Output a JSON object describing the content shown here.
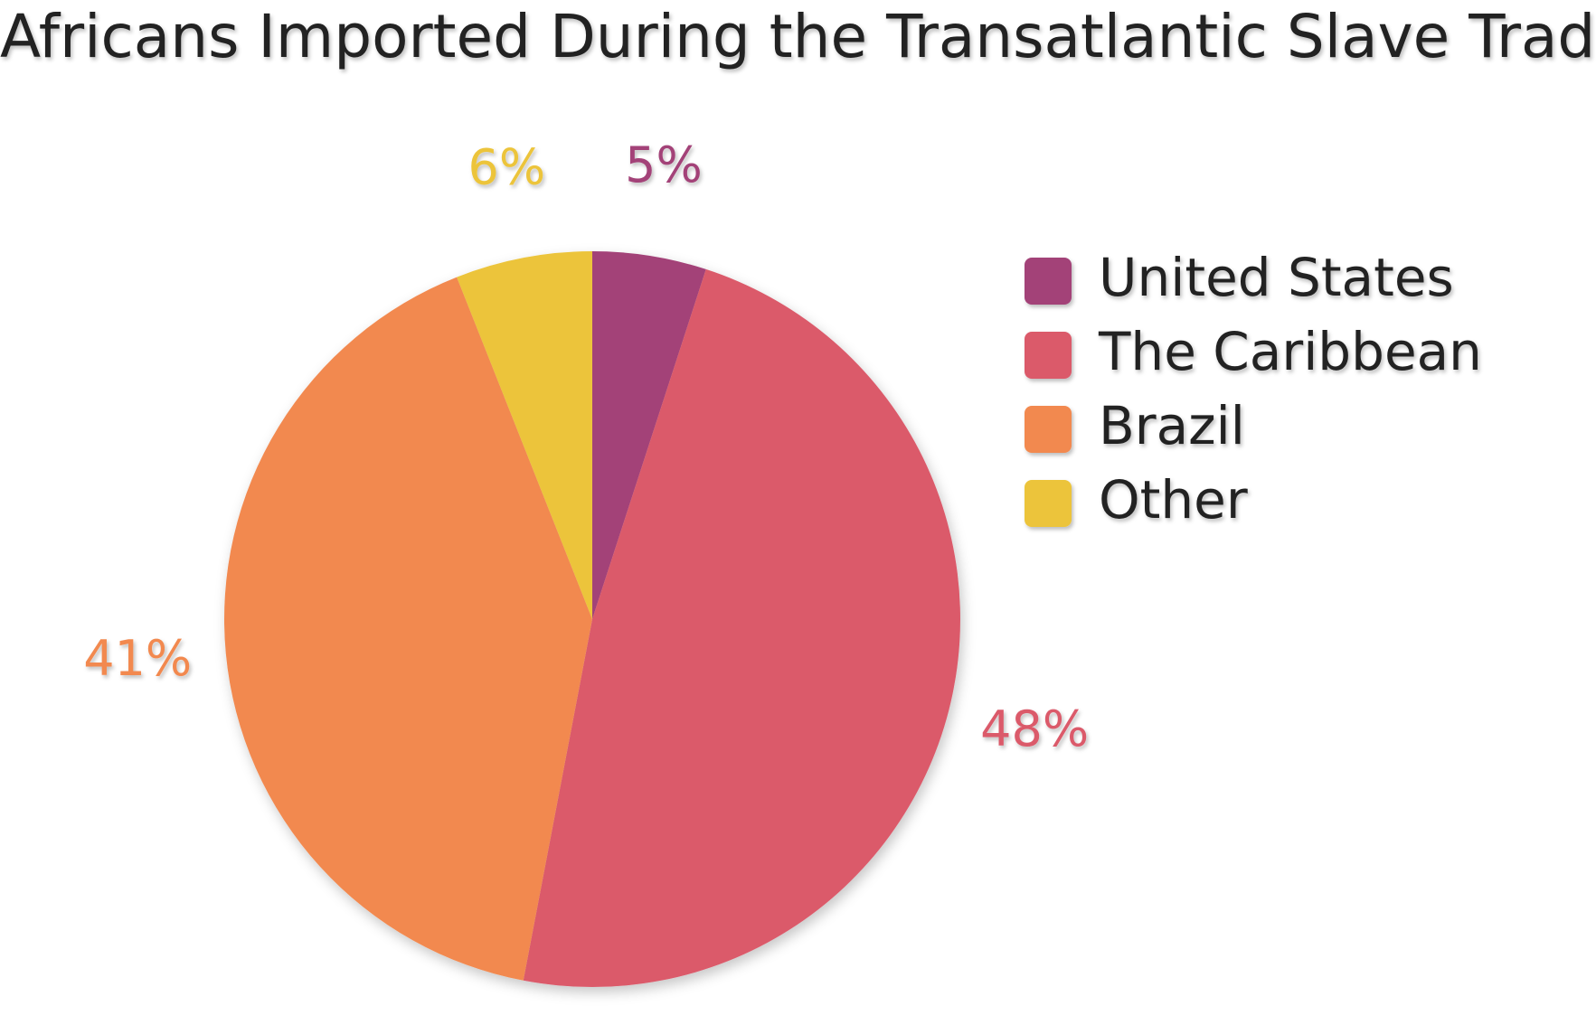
{
  "chart_data": {
    "type": "pie",
    "title": "Africans Imported During the Transatlantic Slave Trade",
    "legend_position": "right",
    "slices": [
      {
        "label": "United States",
        "value": 5,
        "display": "5%",
        "color": "#a34278"
      },
      {
        "label": "The Caribbean",
        "value": 48,
        "display": "48%",
        "color": "#db5a6b"
      },
      {
        "label": "Brazil",
        "value": 41,
        "display": "41%",
        "color": "#f2894f"
      },
      {
        "label": "Other",
        "value": 6,
        "display": "6%",
        "color": "#ecc43a"
      }
    ]
  }
}
